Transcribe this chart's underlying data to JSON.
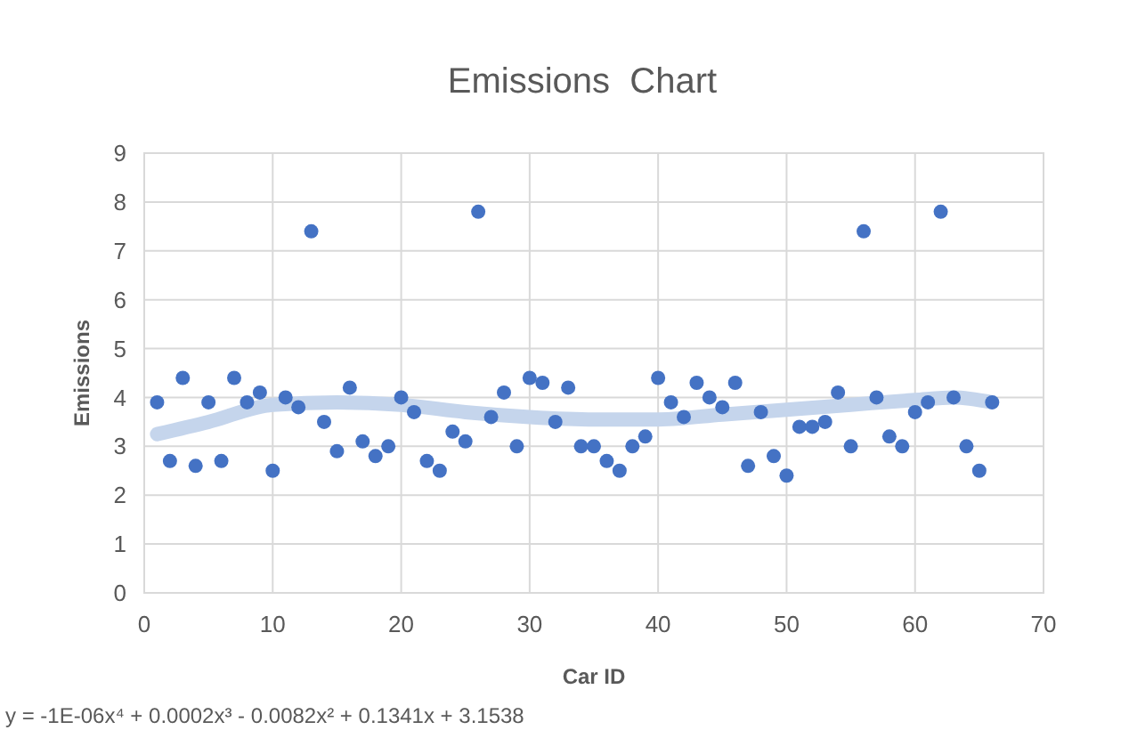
{
  "chart_data": {
    "type": "scatter",
    "title": "Emissions  Chart",
    "xlabel": "Car ID",
    "ylabel": "Emissions",
    "xlim": [
      0,
      70
    ],
    "xticks": [
      0,
      10,
      20,
      30,
      40,
      50,
      60,
      70
    ],
    "ylim": [
      0,
      9
    ],
    "yticks": [
      0,
      1,
      2,
      3,
      4,
      5,
      6,
      7,
      8,
      9
    ],
    "grid": true,
    "annotations": [
      "y = -1E-06x⁴ + 0.0002x³ - 0.0082x² + 0.1341x + 3.1538"
    ],
    "series": [
      {
        "color": "#4472c4",
        "marker": "circle",
        "x": [
          1,
          2,
          3,
          4,
          5,
          6,
          7,
          8,
          9,
          10,
          11,
          12,
          13,
          14,
          15,
          16,
          17,
          18,
          19,
          20,
          21,
          22,
          23,
          24,
          25,
          26,
          27,
          28,
          29,
          30,
          31,
          32,
          33,
          34,
          35,
          36,
          37,
          38,
          39,
          40,
          41,
          42,
          43,
          44,
          45,
          46,
          47,
          48,
          49,
          50,
          51,
          52,
          53,
          54,
          55,
          56,
          57,
          58,
          59,
          60,
          61,
          62,
          63,
          64,
          65,
          66
        ],
        "values": [
          3.9,
          2.7,
          4.4,
          2.6,
          3.9,
          2.7,
          4.4,
          3.9,
          4.1,
          2.5,
          4.0,
          3.8,
          7.4,
          3.5,
          2.9,
          4.2,
          3.1,
          2.8,
          3.0,
          4.0,
          3.7,
          2.7,
          2.5,
          3.3,
          3.1,
          7.8,
          3.6,
          4.1,
          3.0,
          4.4,
          4.3,
          3.5,
          4.2,
          3.0,
          3.0,
          2.7,
          2.5,
          3.0,
          3.2,
          4.4,
          3.9,
          3.6,
          4.3,
          4.0,
          3.8,
          4.3,
          2.6,
          3.7,
          2.8,
          2.4,
          3.4,
          3.4,
          3.5,
          4.1,
          3.0,
          7.4,
          4.0,
          3.2,
          3.0,
          3.7,
          3.9,
          7.8,
          4.0,
          3.0,
          2.5,
          3.9
        ]
      },
      {
        "type": "line",
        "color": "#c5d5ec",
        "x": [
          1,
          5,
          10,
          15,
          20,
          25,
          30,
          35,
          40,
          45,
          50,
          55,
          60,
          63,
          66
        ],
        "values": [
          3.25,
          3.5,
          3.85,
          3.9,
          3.85,
          3.7,
          3.6,
          3.55,
          3.55,
          3.65,
          3.75,
          3.85,
          3.95,
          4.0,
          3.9
        ]
      }
    ]
  }
}
